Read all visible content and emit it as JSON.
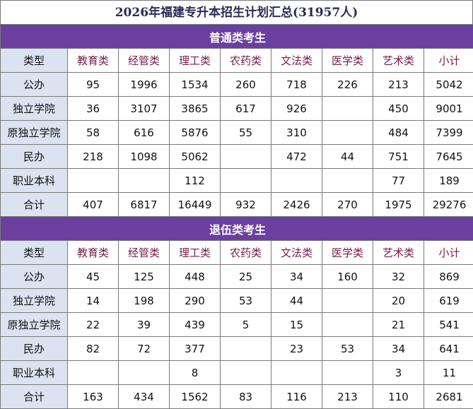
{
  "title": "2026年福建专升本招生计划汇总(31957人)",
  "columns": [
    "类型",
    "教育类",
    "经管类",
    "理工类",
    "农药类",
    "文法类",
    "医学类",
    "艺术类",
    "小计"
  ],
  "sections": [
    {
      "name": "普通类考生",
      "rows": [
        [
          "公办",
          "95",
          "1996",
          "1534",
          "260",
          "718",
          "226",
          "213",
          "5042"
        ],
        [
          "独立学院",
          "36",
          "3107",
          "3865",
          "617",
          "926",
          "",
          "450",
          "9001"
        ],
        [
          "原独立学院",
          "58",
          "616",
          "5876",
          "55",
          "310",
          "",
          "484",
          "7399"
        ],
        [
          "民办",
          "218",
          "1098",
          "5062",
          "",
          "472",
          "44",
          "751",
          "7645"
        ],
        [
          "职业本科",
          "",
          "",
          "112",
          "",
          "",
          "",
          "77",
          "189"
        ],
        [
          "合计",
          "407",
          "6817",
          "16449",
          "932",
          "2426",
          "270",
          "1975",
          "29276"
        ]
      ]
    },
    {
      "name": "退伍类考生",
      "rows": [
        [
          "公办",
          "45",
          "125",
          "448",
          "25",
          "34",
          "160",
          "32",
          "869"
        ],
        [
          "独立学院",
          "14",
          "198",
          "290",
          "53",
          "44",
          "",
          "20",
          "619"
        ],
        [
          "原独立学院",
          "22",
          "39",
          "439",
          "5",
          "15",
          "",
          "21",
          "541"
        ],
        [
          "民办",
          "82",
          "72",
          "377",
          "",
          "23",
          "53",
          "34",
          "641"
        ],
        [
          "职业本科",
          "",
          "",
          "8",
          "",
          "",
          "",
          "3",
          "11"
        ],
        [
          "合计",
          "163",
          "434",
          "1562",
          "83",
          "116",
          "213",
          "110",
          "2681"
        ]
      ]
    }
  ]
}
